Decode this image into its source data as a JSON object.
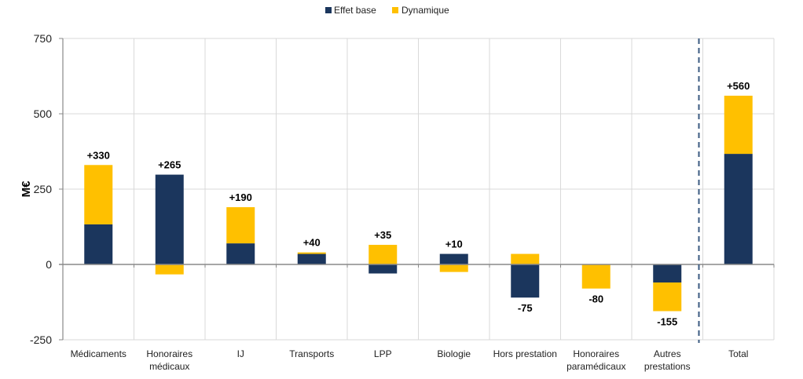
{
  "chart_data": {
    "type": "bar",
    "stacked": true,
    "title": "",
    "xlabel": "",
    "ylabel": "M€",
    "ylim": [
      -250,
      750
    ],
    "yticks": [
      750,
      500,
      250,
      0,
      -250
    ],
    "grid": true,
    "legend_position": "top-center",
    "categories": [
      [
        "Médicaments"
      ],
      [
        "Honoraires",
        "médicaux"
      ],
      [
        "IJ"
      ],
      [
        "Transports"
      ],
      [
        "LPP"
      ],
      [
        "Biologie"
      ],
      [
        "Hors prestation"
      ],
      [
        "Honoraires",
        "paramédicaux"
      ],
      [
        "Autres",
        "prestations"
      ],
      [
        "Total"
      ]
    ],
    "series": [
      {
        "name": "Effet base",
        "color": "#1B365D",
        "values": [
          133,
          298,
          70,
          35,
          -30,
          35,
          -110,
          0,
          -60,
          367
        ]
      },
      {
        "name": "Dynamique",
        "color": "#FFC000",
        "values": [
          197,
          -33,
          120,
          5,
          65,
          -25,
          35,
          -80,
          -95,
          193
        ]
      }
    ],
    "data_labels": [
      "+330",
      "+265",
      "+190",
      "+40",
      "+35",
      "+10",
      "-75",
      "-80",
      "-155",
      "+560"
    ],
    "separator_before_category": "Total"
  }
}
